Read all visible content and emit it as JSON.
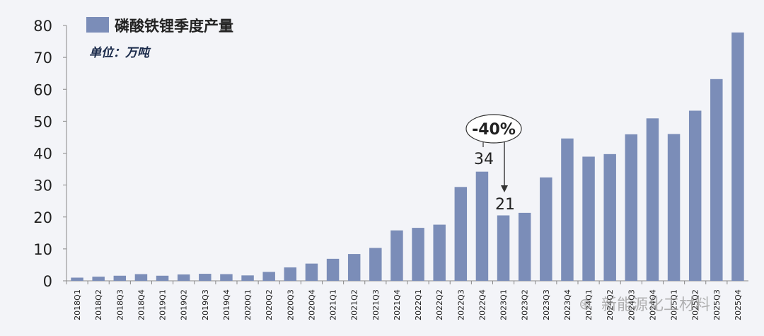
{
  "chart_data": {
    "type": "bar",
    "legend": "磷酸铁锂季度产量",
    "unit_label": "单位：万吨",
    "legend_position": "top-left",
    "bar_color": "#7b8db8",
    "grid": false,
    "ylim": [
      0,
      80
    ],
    "yticks": [
      0,
      10,
      20,
      30,
      40,
      50,
      60,
      70,
      80
    ],
    "categories": [
      "2018Q1",
      "2018Q2",
      "2018Q3",
      "2018Q4",
      "2019Q1",
      "2019Q2",
      "2019Q3",
      "2019Q4",
      "2020Q1",
      "2020Q2",
      "2020Q3",
      "2020Q4",
      "2021Q1",
      "2021Q2",
      "2021Q3",
      "2021Q4",
      "2022Q1",
      "2022Q2",
      "2022Q3",
      "2022Q4",
      "2023Q1",
      "2023Q2",
      "2023Q3",
      "2023Q4",
      "2024Q1",
      "2024Q2",
      "2024Q3",
      "2024Q4",
      "2025Q1",
      "2025Q2",
      "2025Q3",
      "2025Q4"
    ],
    "values": [
      1.0,
      1.3,
      1.6,
      2.1,
      1.6,
      2.0,
      2.2,
      2.1,
      1.7,
      2.8,
      4.2,
      5.4,
      6.9,
      8.4,
      10.3,
      15.8,
      16.6,
      17.6,
      29.4,
      34.2,
      20.5,
      21.3,
      32.4,
      44.6,
      38.9,
      39.7,
      45.9,
      50.9,
      46.0,
      53.3,
      63.2,
      77.8
    ],
    "annotations": [
      {
        "category": "2022Q4",
        "label": "34"
      },
      {
        "category": "2023Q1",
        "label": "21"
      },
      {
        "label": "-40%",
        "from": "2022Q4",
        "to": "2023Q1"
      }
    ]
  },
  "watermark": "新能源化工材料"
}
